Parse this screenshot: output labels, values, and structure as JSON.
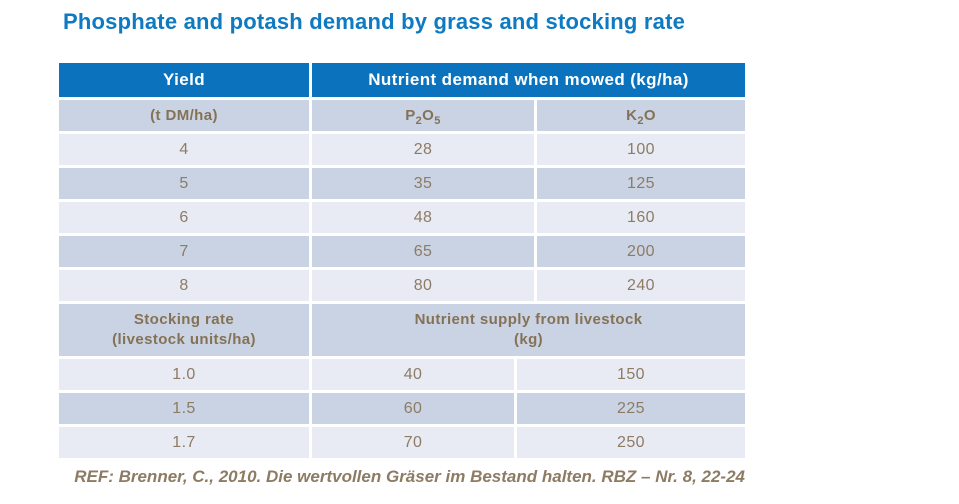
{
  "title": "Phosphate and potash demand by grass and stocking rate",
  "colors": {
    "title_blue": "#0d7ac1",
    "header_blue": "#0b73bd",
    "row_light": "#e8ebf4",
    "row_medium": "#c9d3e4",
    "text_brown": "#8d7b64"
  },
  "table": {
    "header": {
      "yield": "Yield",
      "mowed": "Nutrient demand when mowed (kg/ha)"
    },
    "subheader": {
      "yield_unit": "(t DM/ha)",
      "p2o5": [
        "P",
        "2",
        "O",
        "5"
      ],
      "k2o": [
        "K",
        "2",
        "O"
      ]
    },
    "mowed_rows": [
      {
        "yield": "4",
        "p2o5": "28",
        "k2o": "100"
      },
      {
        "yield": "5",
        "p2o5": "35",
        "k2o": "125"
      },
      {
        "yield": "6",
        "p2o5": "48",
        "k2o": "160"
      },
      {
        "yield": "7",
        "p2o5": "65",
        "k2o": "200"
      },
      {
        "yield": "8",
        "p2o5": "80",
        "k2o": "240"
      }
    ],
    "section_header": {
      "col1_line1": "Stocking rate",
      "col1_line2": "(livestock units/ha)",
      "col23_line1": "Nutrient supply from livestock",
      "col23_line2": "(kg)"
    },
    "supply_rows": [
      {
        "rate": "1.0",
        "p2o5": "40",
        "k2o": "150"
      },
      {
        "rate": "1.5",
        "p2o5": "60",
        "k2o": "225"
      },
      {
        "rate": "1.7",
        "p2o5": "70",
        "k2o": "250"
      }
    ]
  },
  "footer_ref": "REF: Brenner, C., 2010. Die wertvollen Gräser im Bestand halten. RBZ – Nr. 8, 22-24",
  "chart_data": {
    "type": "table",
    "title": "Phosphate and potash demand by grass and stocking rate",
    "sections": [
      {
        "section_label": "Nutrient demand when mowed (kg/ha)",
        "columns": [
          "Yield (t DM/ha)",
          "P2O5",
          "K2O"
        ],
        "rows": [
          [
            4,
            28,
            100
          ],
          [
            5,
            35,
            125
          ],
          [
            6,
            48,
            160
          ],
          [
            7,
            65,
            200
          ],
          [
            8,
            80,
            240
          ]
        ]
      },
      {
        "section_label": "Nutrient supply from livestock (kg)",
        "columns": [
          "Stocking rate (livestock units/ha)",
          "P2O5",
          "K2O"
        ],
        "rows": [
          [
            1.0,
            40,
            150
          ],
          [
            1.5,
            60,
            225
          ],
          [
            1.7,
            70,
            250
          ]
        ]
      }
    ],
    "source": "REF: Brenner, C., 2010. Die wertvollen Gräser im Bestand halten. RBZ – Nr. 8, 22-24"
  }
}
